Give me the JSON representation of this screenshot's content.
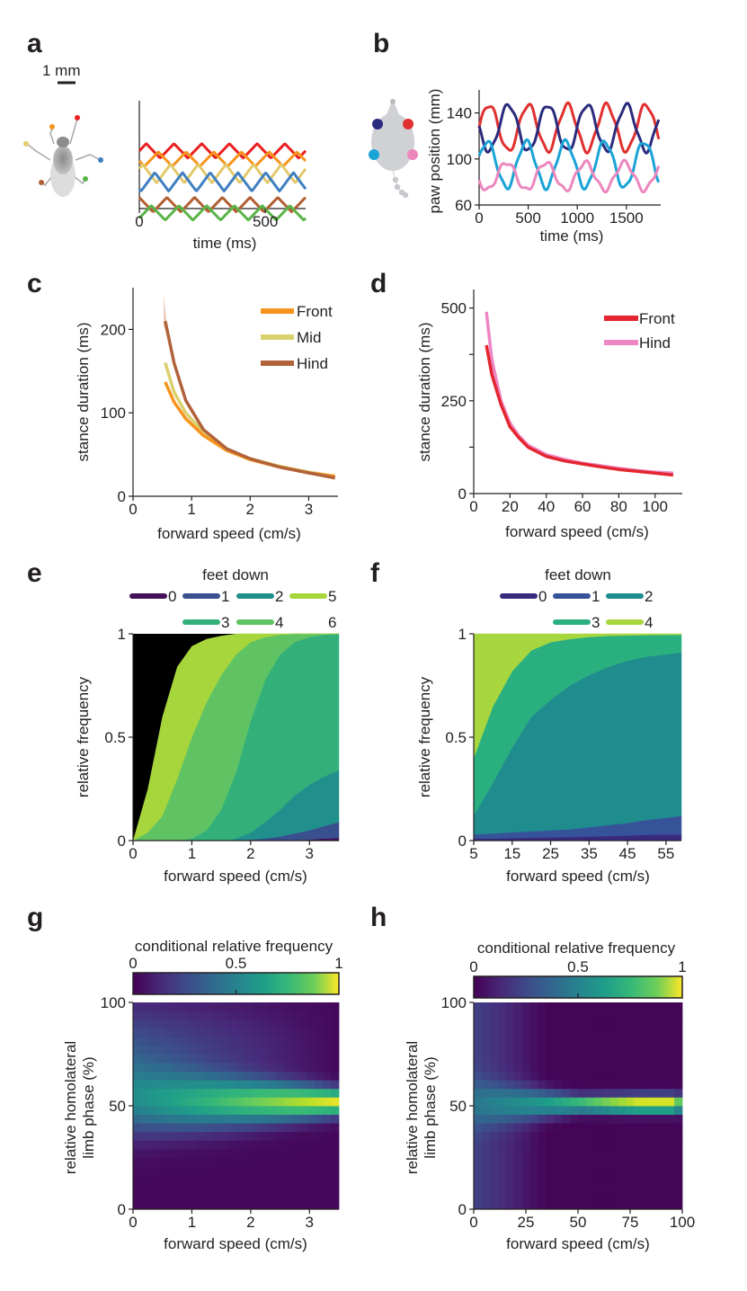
{
  "panel_letters": [
    "a",
    "b",
    "c",
    "d",
    "e",
    "f",
    "g",
    "h"
  ],
  "scale_bar": "1 mm",
  "colors": {
    "fly_legs": [
      "#e8201f",
      "#f7941d",
      "#e3c96a",
      "#3f7fc1",
      "#b25f32",
      "#5ab447"
    ],
    "mouse_paws": [
      "#e03030",
      "#2b2b7e",
      "#1aa3d6",
      "#ec87bd"
    ],
    "fly_groups": {
      "Front": "#f7941d",
      "Mid": "#dbd06e",
      "Hind": "#b1623a"
    },
    "mouse_groups": {
      "Front": "#e3262f",
      "Hind": "#ef86c4"
    },
    "feet_fly": [
      "#45105a",
      "#3a4f8e",
      "#21908c",
      "#33b07a",
      "#5fc363",
      "#a7d53c"
    ],
    "feet_mouse": [
      "#3a2a7e",
      "#36539a",
      "#1f8c8d",
      "#2aaf7f",
      "#a8d63e"
    ]
  },
  "chart_data": [
    {
      "panel": "a",
      "type": "line",
      "title": "",
      "xlabel": "time (ms)",
      "ylabel": "",
      "xlim": [
        0,
        660
      ],
      "xticks": [
        0,
        500
      ],
      "series": [
        {
          "name": "fly leg 1",
          "period": 110,
          "center": 8,
          "amp": 7
        },
        {
          "name": "fly leg 2",
          "period": 110,
          "center": 0,
          "amp": 7
        },
        {
          "name": "fly leg 3",
          "period": 110,
          "center": -14,
          "amp": 9
        },
        {
          "name": "fly leg 4",
          "period": 110,
          "center": -22,
          "amp": 9
        },
        {
          "name": "fly leg 5",
          "period": 110,
          "center": -44,
          "amp": 7
        },
        {
          "name": "fly leg 6",
          "period": 110,
          "center": -52,
          "amp": 7
        }
      ]
    },
    {
      "panel": "b",
      "type": "line",
      "title": "",
      "xlabel": "time (ms)",
      "ylabel": "paw position (mm)",
      "xlim": [
        0,
        1850
      ],
      "ylim": [
        60,
        160
      ],
      "xticks": [
        0,
        500,
        1000,
        1500
      ],
      "yticks": [
        60,
        100,
        140
      ],
      "series": [
        {
          "name": "front right",
          "period": 400,
          "center": 127,
          "amp": 20
        },
        {
          "name": "front left",
          "period": 400,
          "center": 127,
          "amp": 20
        },
        {
          "name": "hind right",
          "period": 400,
          "center": 95,
          "amp": 20
        },
        {
          "name": "hind left",
          "period": 400,
          "center": 85,
          "amp": 12
        }
      ]
    },
    {
      "panel": "c",
      "type": "line",
      "title": "",
      "xlabel": "forward speed (cm/s)",
      "ylabel": "stance duration (ms)",
      "xlim": [
        0,
        3.5
      ],
      "ylim": [
        0,
        250
      ],
      "xticks": [
        0,
        1,
        2,
        3
      ],
      "yticks": [
        0,
        100,
        200
      ],
      "series": [
        {
          "name": "Front",
          "x": [
            0.55,
            0.7,
            0.9,
            1.2,
            1.6,
            2.0,
            2.5,
            3.0,
            3.45
          ],
          "y": [
            137,
            113,
            93,
            73,
            55,
            44,
            35,
            28,
            24
          ]
        },
        {
          "name": "Mid",
          "x": [
            0.55,
            0.7,
            0.9,
            1.2,
            1.6,
            2.0,
            2.5,
            3.0,
            3.45
          ],
          "y": [
            160,
            125,
            100,
            77,
            56,
            45,
            36,
            29,
            24
          ]
        },
        {
          "name": "Hind",
          "x": [
            0.55,
            0.7,
            0.9,
            1.2,
            1.6,
            2.0,
            2.5,
            3.0,
            3.45
          ],
          "y": [
            210,
            160,
            115,
            80,
            57,
            45,
            35,
            28,
            22
          ]
        }
      ]
    },
    {
      "panel": "d",
      "type": "line",
      "title": "",
      "xlabel": "forward speed (cm/s)",
      "ylabel": "stance duration (ms)",
      "xlim": [
        0,
        115
      ],
      "ylim": [
        0,
        550
      ],
      "xticks": [
        0,
        20,
        40,
        60,
        80,
        100
      ],
      "yticks": [
        0,
        250,
        500
      ],
      "series": [
        {
          "name": "Front",
          "x": [
            7,
            10,
            15,
            20,
            25,
            30,
            40,
            50,
            60,
            70,
            80,
            90,
            100,
            110
          ],
          "y": [
            400,
            320,
            240,
            180,
            150,
            125,
            100,
            88,
            80,
            72,
            65,
            60,
            55,
            50
          ]
        },
        {
          "name": "Hind",
          "x": [
            7,
            10,
            15,
            20,
            25,
            30,
            40,
            50,
            60,
            70,
            80,
            90,
            100,
            110
          ],
          "y": [
            490,
            360,
            250,
            190,
            155,
            130,
            105,
            92,
            82,
            75,
            68,
            62,
            58,
            55
          ]
        }
      ]
    },
    {
      "panel": "e",
      "type": "area",
      "title": "feet down",
      "xlabel": "forward speed (cm/s)",
      "ylabel": "relative frequency",
      "xlim": [
        0,
        3.5
      ],
      "ylim": [
        0,
        1
      ],
      "xticks": [
        0,
        1,
        2,
        3
      ],
      "yticks": [
        0,
        0.5,
        1
      ],
      "legend": [
        "0",
        "1",
        "2",
        "3",
        "4",
        "5",
        "6"
      ],
      "x": [
        0,
        0.25,
        0.5,
        0.75,
        1,
        1.25,
        1.5,
        1.75,
        2,
        2.25,
        2.5,
        2.75,
        3,
        3.25,
        3.5
      ],
      "boundaries": [
        [
          0,
          0,
          0,
          0,
          0,
          0,
          0,
          0,
          0,
          0,
          0,
          0,
          0.005,
          0.01,
          0.012
        ],
        [
          0,
          0,
          0,
          0,
          0,
          0,
          0,
          0,
          0.005,
          0.01,
          0.02,
          0.035,
          0.05,
          0.07,
          0.09
        ],
        [
          0,
          0,
          0,
          0,
          0,
          0,
          0,
          0.01,
          0.04,
          0.09,
          0.15,
          0.22,
          0.27,
          0.31,
          0.34
        ],
        [
          0,
          0,
          0,
          0,
          0.01,
          0.05,
          0.15,
          0.33,
          0.58,
          0.78,
          0.9,
          0.96,
          0.985,
          0.995,
          1
        ],
        [
          0,
          0.04,
          0.12,
          0.3,
          0.5,
          0.67,
          0.8,
          0.9,
          0.96,
          0.985,
          0.995,
          1,
          1,
          1,
          1
        ],
        [
          0,
          0.25,
          0.6,
          0.84,
          0.94,
          0.975,
          0.99,
          1,
          1,
          1,
          1,
          1,
          1,
          1,
          1
        ],
        [
          1,
          1,
          1,
          1,
          1,
          1,
          1,
          1,
          1,
          1,
          1,
          1,
          1,
          1,
          1
        ]
      ]
    },
    {
      "panel": "f",
      "type": "area",
      "title": "feet down",
      "xlabel": "forward speed (cm/s)",
      "ylabel": "relative frequency",
      "xlim": [
        5,
        59
      ],
      "ylim": [
        0,
        1
      ],
      "xticks": [
        5,
        15,
        25,
        35,
        45,
        55
      ],
      "yticks": [
        0,
        0.5,
        1
      ],
      "legend": [
        "0",
        "1",
        "2",
        "3",
        "4"
      ],
      "x": [
        5,
        10,
        15,
        20,
        25,
        30,
        35,
        40,
        45,
        50,
        55,
        59
      ],
      "boundaries": [
        [
          0.01,
          0.01,
          0.012,
          0.014,
          0.016,
          0.018,
          0.02,
          0.022,
          0.025,
          0.028,
          0.03,
          0.03
        ],
        [
          0.03,
          0.035,
          0.04,
          0.045,
          0.05,
          0.055,
          0.065,
          0.075,
          0.085,
          0.1,
          0.11,
          0.12
        ],
        [
          0.12,
          0.28,
          0.45,
          0.6,
          0.68,
          0.75,
          0.8,
          0.84,
          0.87,
          0.89,
          0.9,
          0.91
        ],
        [
          0.4,
          0.65,
          0.82,
          0.92,
          0.96,
          0.975,
          0.985,
          0.99,
          0.992,
          0.994,
          0.995,
          0.995
        ],
        [
          1,
          1,
          1,
          1,
          1,
          1,
          1,
          1,
          1,
          1,
          1,
          1
        ]
      ]
    },
    {
      "panel": "g",
      "type": "heatmap",
      "title": "conditional relative frequency",
      "xlabel": "forward speed (cm/s)",
      "ylabel_line1": "relative homolateral",
      "ylabel_line2": "limb phase (%)",
      "xlim": [
        0,
        3.5
      ],
      "ylim": [
        0,
        100
      ],
      "xticks": [
        0,
        1,
        2,
        3
      ],
      "yticks": [
        0,
        50,
        100
      ],
      "colorbar_ticks": [
        "0",
        "0.5",
        "1"
      ],
      "peak_phase": 52,
      "peak_speed": 3.4
    },
    {
      "panel": "h",
      "type": "heatmap",
      "title": "conditional relative frequency",
      "xlabel": "forward speed (cm/s)",
      "ylabel_line1": "relative homolateral",
      "ylabel_line2": "limb phase (%)",
      "xlim": [
        0,
        100
      ],
      "ylim": [
        0,
        100
      ],
      "xticks": [
        0,
        25,
        50,
        75,
        100
      ],
      "yticks": [
        0,
        50,
        100
      ],
      "colorbar_ticks": [
        "0",
        "0.5",
        "1"
      ],
      "peak_phase": 51,
      "peak_speed": 85
    }
  ]
}
